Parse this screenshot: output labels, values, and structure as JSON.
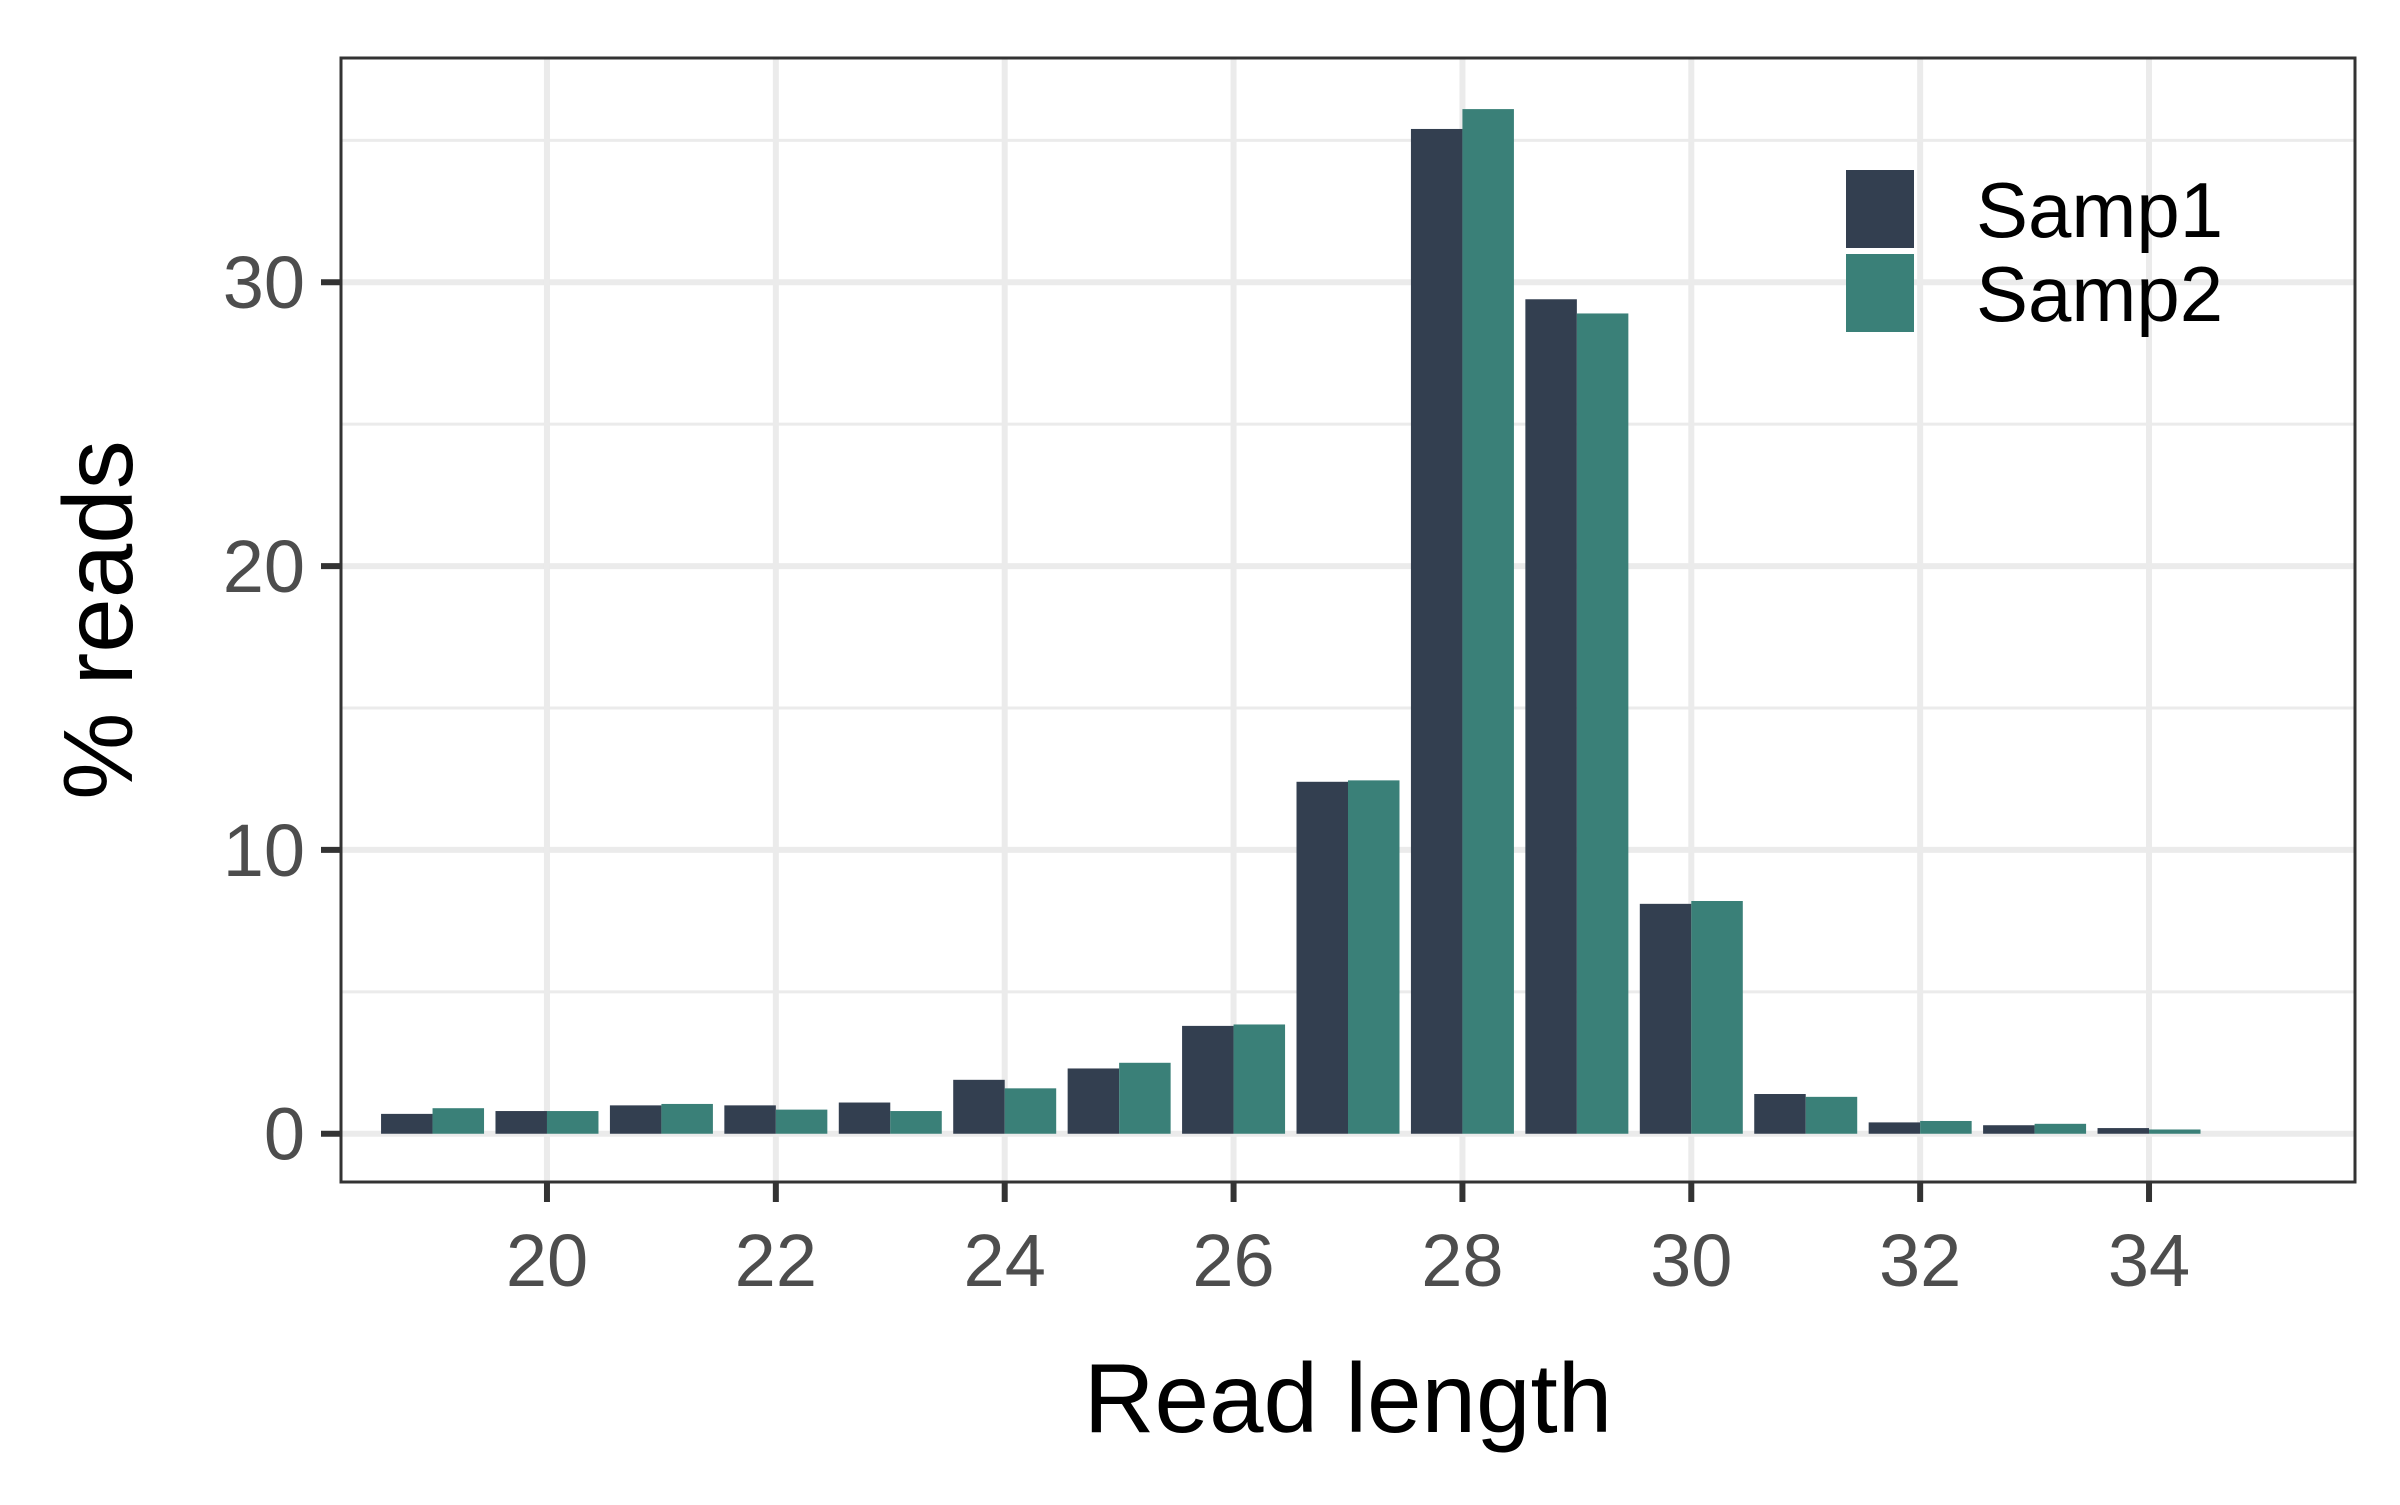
{
  "chart_data": {
    "type": "bar",
    "title": "",
    "xlabel": "Read length",
    "ylabel": "% reads",
    "x": [
      19,
      20,
      21,
      22,
      23,
      24,
      25,
      26,
      27,
      28,
      29,
      30,
      31,
      32,
      33,
      34
    ],
    "series": [
      {
        "name": "Samp1",
        "color": "#333f50",
        "values": [
          0.7,
          0.8,
          1.0,
          1.0,
          1.1,
          1.9,
          2.3,
          3.8,
          12.4,
          35.4,
          29.4,
          8.1,
          1.4,
          0.4,
          0.3,
          0.2
        ]
      },
      {
        "name": "Samp2",
        "color": "#3a8078",
        "values": [
          0.9,
          0.8,
          1.05,
          0.85,
          0.8,
          1.6,
          2.5,
          3.85,
          12.45,
          36.1,
          28.9,
          8.2,
          1.3,
          0.45,
          0.35,
          0.15
        ]
      }
    ],
    "xticks": [
      20,
      22,
      24,
      26,
      28,
      30,
      32,
      34
    ],
    "yticks": [
      0,
      10,
      20,
      30
    ],
    "xlim": [
      18.2,
      35.8
    ],
    "ylim": [
      -1.7,
      37.9
    ],
    "grid": true,
    "legend_position": "top-right"
  }
}
